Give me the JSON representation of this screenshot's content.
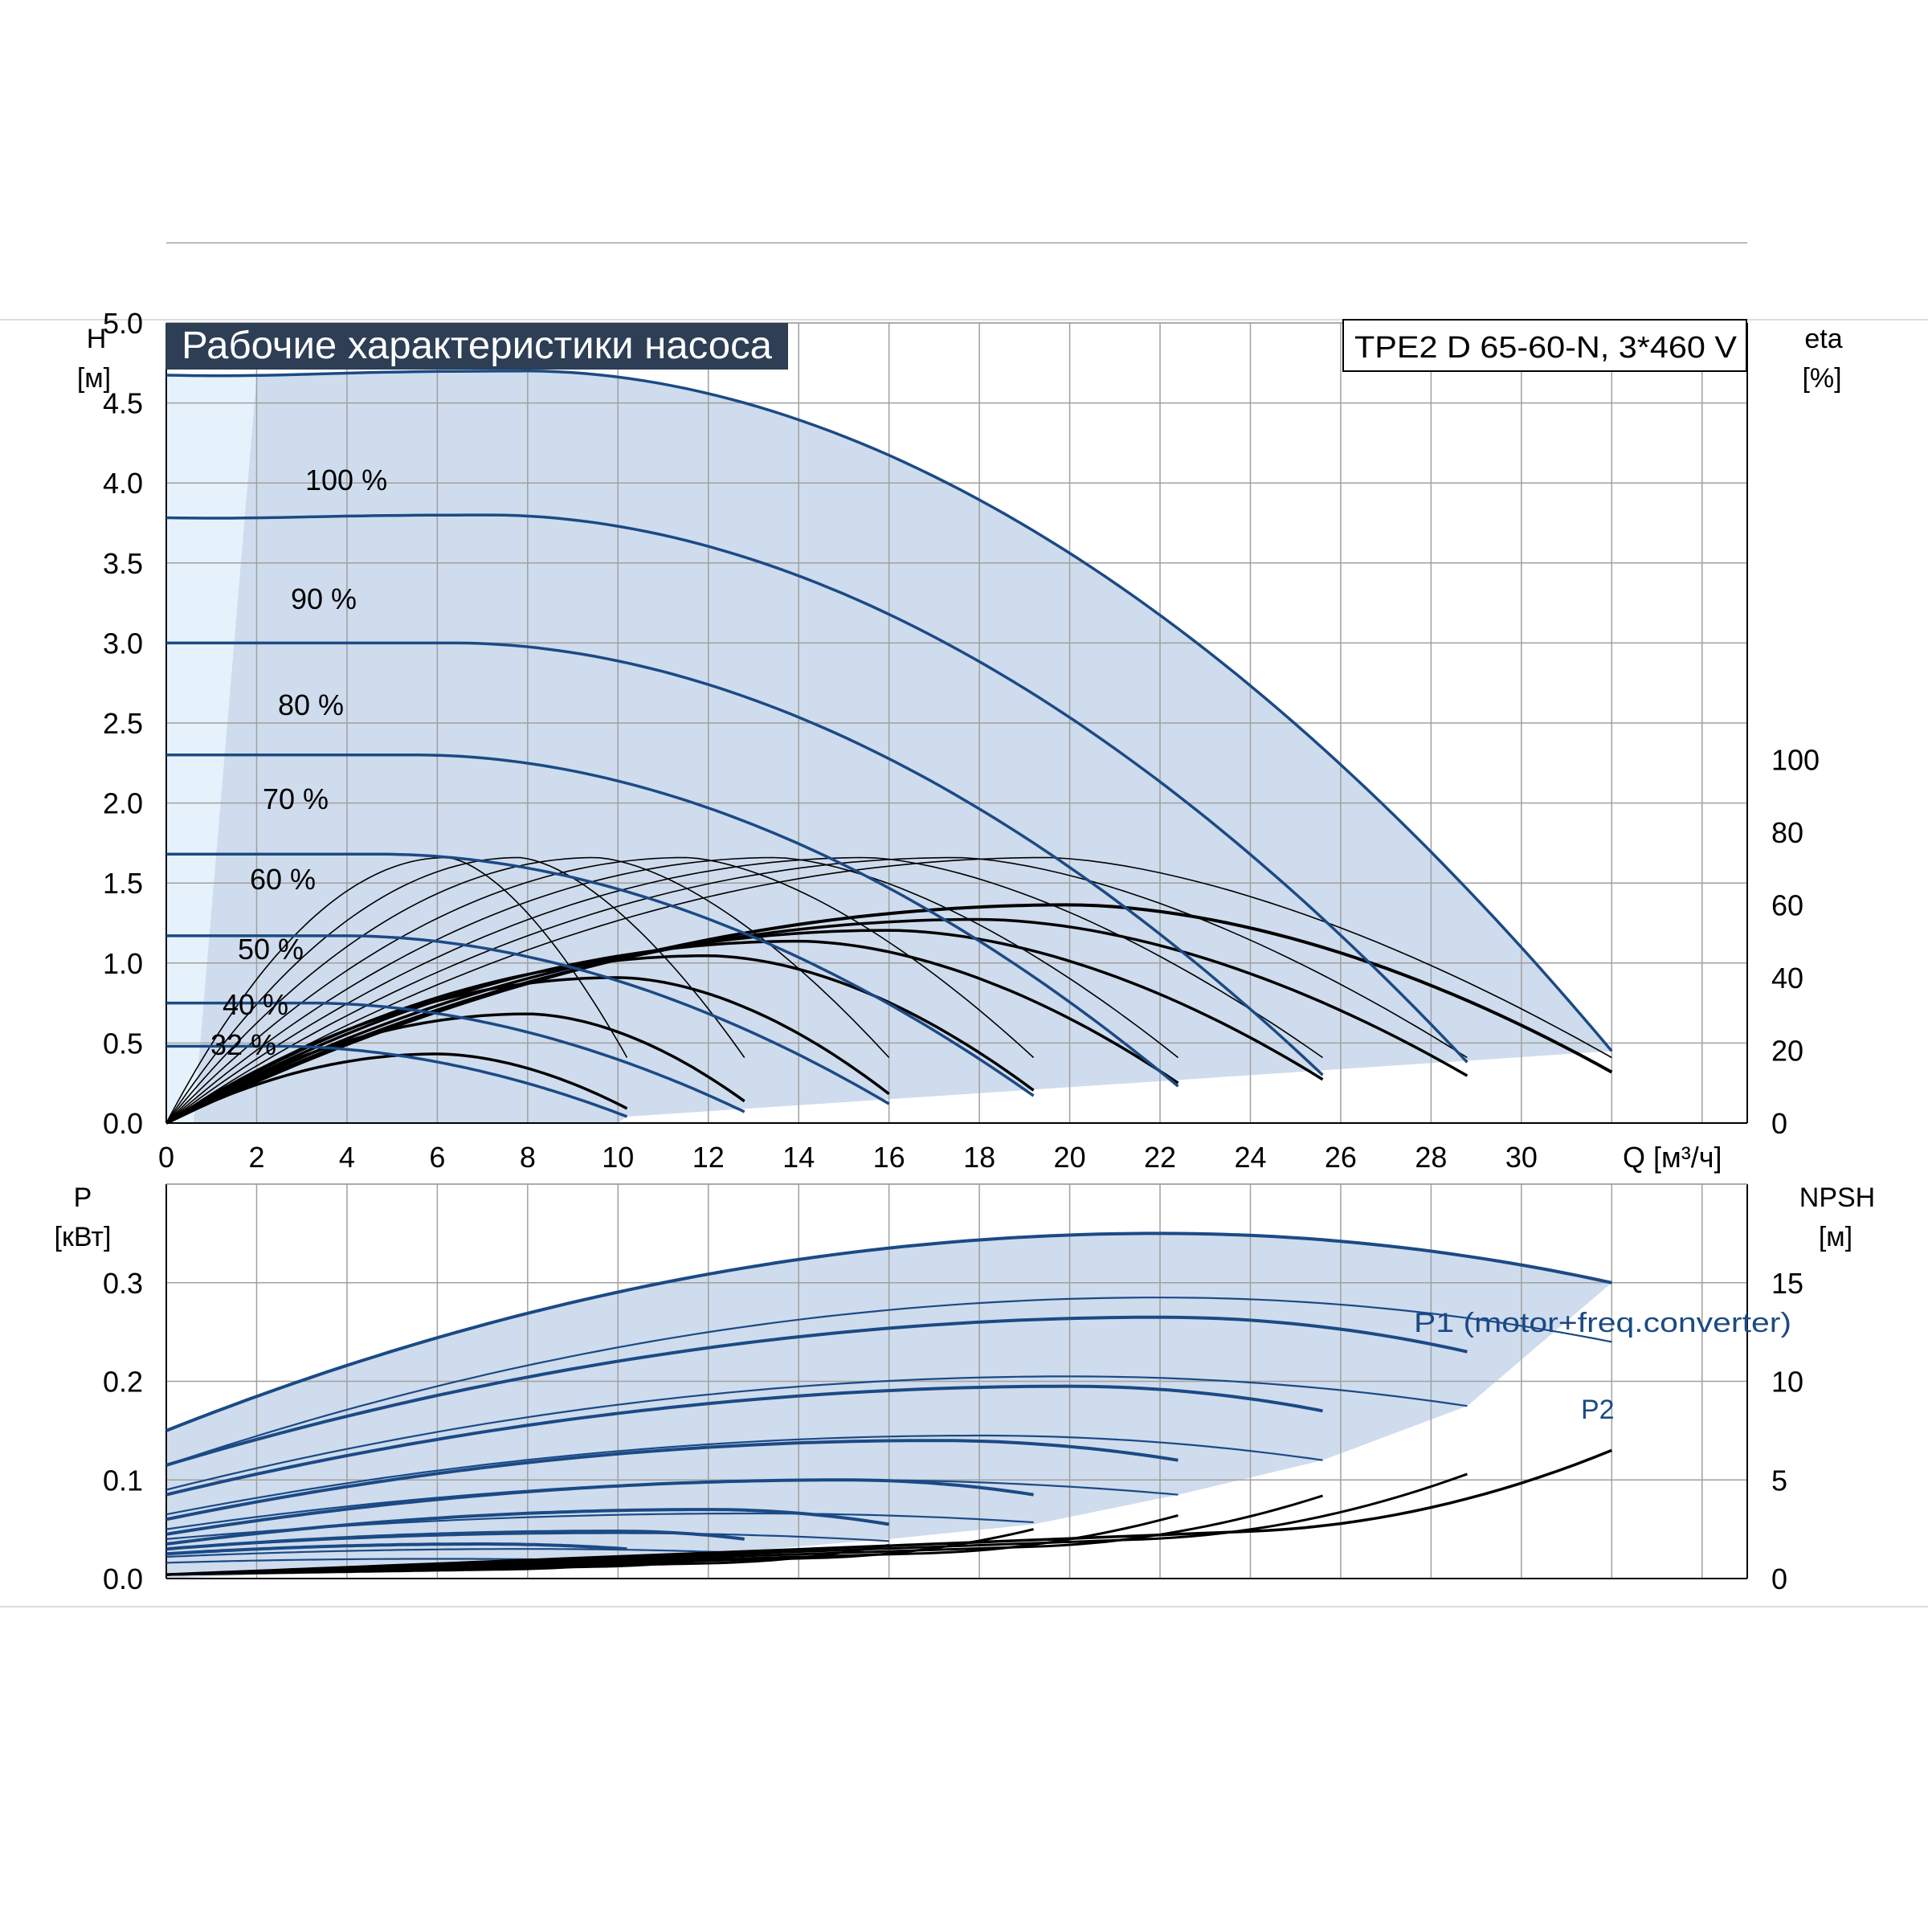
{
  "title_badge": "Рабочие характеристики насоса",
  "model_label": "TPE2 D 65-60-N, 3*460 V",
  "colors": {
    "blue": "#1b4a85",
    "fill": "#cfdced",
    "fill_light": "#e6f2fb",
    "grid": "#a0a0a0",
    "black": "#000000",
    "badge": "#2d3e55"
  },
  "chart_data": [
    {
      "type": "line",
      "id": "head-chart",
      "title": "Рабочие характеристики насоса",
      "ylabel_left": [
        "H",
        "[м]"
      ],
      "ylabel_right": [
        "eta",
        "[%]"
      ],
      "xlabel": "Q [м³/ч]",
      "xlim": [
        0,
        35
      ],
      "ylim": [
        0,
        5.0
      ],
      "x_ticks": [
        "0",
        "2",
        "4",
        "6",
        "8",
        "10",
        "12",
        "14",
        "16",
        "18",
        "20",
        "22",
        "24",
        "26",
        "28",
        "30"
      ],
      "y_ticks": [
        "0.0",
        "0.5",
        "1.0",
        "1.5",
        "2.0",
        "2.5",
        "3.0",
        "3.5",
        "4.0",
        "4.5",
        "5.0"
      ],
      "y_right_ticks": [
        "0",
        "20",
        "40",
        "60",
        "80",
        "100"
      ],
      "grid": true,
      "speed_curves": [
        {
          "label": "100 %",
          "shutoff": 4.7,
          "qmax": 32.0,
          "flat": 8.0,
          "end": 0.45,
          "bump": 0.03
        },
        {
          "label": "90 %",
          "shutoff": 3.8,
          "qmax": 28.8,
          "flat": 7.2,
          "end": 0.38,
          "bump": 0.02
        },
        {
          "label": "80 %",
          "shutoff": 3.0,
          "qmax": 25.6,
          "flat": 6.4,
          "end": 0.3,
          "bump": 0.0
        },
        {
          "label": "70 %",
          "shutoff": 2.3,
          "qmax": 22.4,
          "flat": 5.6,
          "end": 0.23,
          "bump": 0.0
        },
        {
          "label": "60 %",
          "shutoff": 1.68,
          "qmax": 19.2,
          "flat": 4.8,
          "end": 0.17,
          "bump": 0.0
        },
        {
          "label": "50 %",
          "shutoff": 1.17,
          "qmax": 16.0,
          "flat": 4.0,
          "end": 0.12,
          "bump": 0.0
        },
        {
          "label": "40 %",
          "shutoff": 0.75,
          "qmax": 12.8,
          "flat": 3.2,
          "end": 0.07,
          "bump": 0.0
        },
        {
          "label": "32 %",
          "shutoff": 0.48,
          "qmax": 10.2,
          "flat": 2.5,
          "end": 0.04,
          "bump": 0.0
        }
      ],
      "efficiency_curves": [
        {
          "qmax": 32.0,
          "peak": 60.0,
          "qpeak": 20.0,
          "end": 14.0
        },
        {
          "qmax": 28.8,
          "peak": 56.0,
          "qpeak": 18.0,
          "end": 13.0
        },
        {
          "qmax": 25.6,
          "peak": 53.0,
          "qpeak": 16.0,
          "end": 12.0
        },
        {
          "qmax": 22.4,
          "peak": 50.0,
          "qpeak": 14.0,
          "end": 11.0
        },
        {
          "qmax": 19.2,
          "peak": 46.0,
          "qpeak": 12.0,
          "end": 9.0
        },
        {
          "qmax": 16.0,
          "peak": 40.0,
          "qpeak": 10.0,
          "end": 8.0
        },
        {
          "qmax": 12.8,
          "peak": 30.0,
          "qpeak": 8.0,
          "end": 6.0
        },
        {
          "qmax": 10.2,
          "peak": 19.0,
          "qpeak": 6.0,
          "end": 4.0
        }
      ],
      "eta_thin_curves": [
        {
          "peak_q": 6.2,
          "qend": 10.2
        },
        {
          "peak_q": 7.8,
          "qend": 12.8
        },
        {
          "peak_q": 9.5,
          "qend": 16.0
        },
        {
          "peak_q": 11.5,
          "qend": 19.2
        },
        {
          "peak_q": 13.5,
          "qend": 22.4
        },
        {
          "peak_q": 15.5,
          "qend": 25.6
        },
        {
          "peak_q": 17.5,
          "qend": 28.8
        },
        {
          "peak_q": 19.5,
          "qend": 32.0
        }
      ],
      "eta_thin_peak": 73.0
    },
    {
      "type": "line",
      "id": "power-chart",
      "ylabel_left": [
        "P",
        "[кВт]"
      ],
      "ylabel_right": [
        "NPSH",
        "[м]"
      ],
      "ylim": [
        0,
        0.4
      ],
      "y_ticks": [
        "0.0",
        "0.1",
        "0.2",
        "0.3"
      ],
      "y_right_ticks": [
        "0",
        "5",
        "10",
        "15"
      ],
      "npsh_lim": [
        0,
        20
      ],
      "grid": true,
      "p1_label": "P1 (motor+freq.converter)",
      "p2_label": "P2",
      "p1_curves": [
        {
          "q0": 0.15,
          "qpeak": 22.0,
          "peak": 0.35,
          "qmax": 32.0,
          "end": 0.3
        },
        {
          "q0": 0.115,
          "qpeak": 22.0,
          "peak": 0.265,
          "qmax": 28.8,
          "end": 0.23
        },
        {
          "q0": 0.085,
          "qpeak": 20.0,
          "peak": 0.195,
          "qmax": 25.6,
          "end": 0.17
        },
        {
          "q0": 0.06,
          "qpeak": 17.0,
          "peak": 0.14,
          "qmax": 22.4,
          "end": 0.12
        },
        {
          "q0": 0.045,
          "qpeak": 15.0,
          "peak": 0.1,
          "qmax": 19.2,
          "end": 0.085
        },
        {
          "q0": 0.035,
          "qpeak": 12.0,
          "peak": 0.07,
          "qmax": 16.0,
          "end": 0.055
        },
        {
          "q0": 0.03,
          "qpeak": 10.0,
          "peak": 0.048,
          "qmax": 12.8,
          "end": 0.04
        },
        {
          "q0": 0.025,
          "qpeak": 7.0,
          "peak": 0.035,
          "qmax": 10.2,
          "end": 0.03
        }
      ],
      "p2_curves": [
        {
          "q0": 0.115,
          "qpeak": 22.0,
          "peak": 0.285,
          "qmax": 32.0,
          "end": 0.24
        },
        {
          "q0": 0.09,
          "qpeak": 20.0,
          "peak": 0.205,
          "qmax": 28.8,
          "end": 0.175
        },
        {
          "q0": 0.065,
          "qpeak": 18.0,
          "peak": 0.145,
          "qmax": 25.6,
          "end": 0.12
        },
        {
          "q0": 0.05,
          "qpeak": 15.0,
          "peak": 0.1,
          "qmax": 22.4,
          "end": 0.085
        },
        {
          "q0": 0.04,
          "qpeak": 13.0,
          "peak": 0.066,
          "qmax": 19.2,
          "end": 0.057
        },
        {
          "q0": 0.03,
          "qpeak": 10.0,
          "peak": 0.046,
          "qmax": 16.0,
          "end": 0.038
        },
        {
          "q0": 0.022,
          "qpeak": 8.0,
          "peak": 0.03,
          "qmax": 12.8,
          "end": 0.026
        },
        {
          "q0": 0.016,
          "qpeak": 6.0,
          "peak": 0.02,
          "qmax": 10.2,
          "end": 0.018
        }
      ],
      "npsh_curves": [
        {
          "qmax": 32.0,
          "end": 6.5
        },
        {
          "qmax": 28.8,
          "end": 5.3
        },
        {
          "qmax": 25.6,
          "end": 4.2
        },
        {
          "qmax": 22.4,
          "end": 3.2
        },
        {
          "qmax": 19.2,
          "end": 2.5
        },
        {
          "qmax": 16.0,
          "end": 1.7
        },
        {
          "qmax": 12.8,
          "end": 1.2
        },
        {
          "qmax": 10.2,
          "end": 0.8
        }
      ]
    }
  ]
}
